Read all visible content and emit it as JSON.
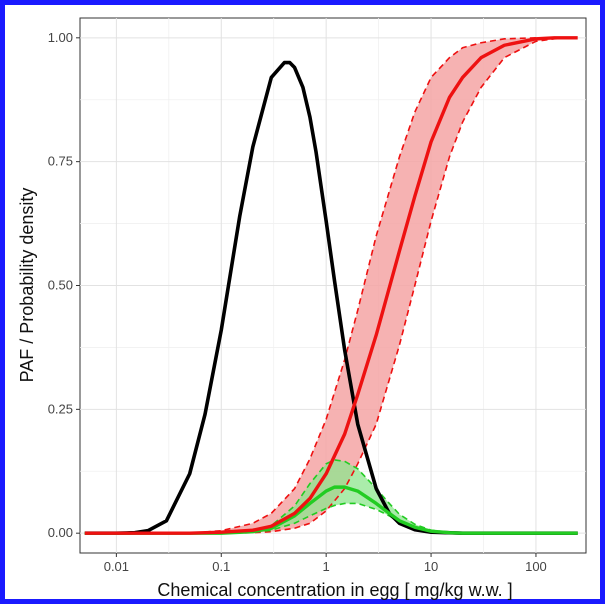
{
  "chart_data": {
    "type": "line",
    "title": "",
    "xlabel": "Chemical concentration in egg [ mg/kg w.w. ]",
    "ylabel": "PAF / Probability density",
    "xscale": "log",
    "xlim": [
      0.0045,
      300
    ],
    "ylim": [
      -0.04,
      1.04
    ],
    "x_ticks": [
      {
        "value": 0.01,
        "label": "0.01"
      },
      {
        "value": 0.1,
        "label": "0.1"
      },
      {
        "value": 1,
        "label": "1"
      },
      {
        "value": 10,
        "label": "10"
      },
      {
        "value": 100,
        "label": "100"
      }
    ],
    "y_ticks": [
      {
        "value": 0,
        "label": "0.00"
      },
      {
        "value": 0.25,
        "label": "0.25"
      },
      {
        "value": 0.5,
        "label": "0.50"
      },
      {
        "value": 0.75,
        "label": "0.75"
      },
      {
        "value": 1,
        "label": "1.00"
      }
    ],
    "grid": true,
    "legend": "none",
    "colors": {
      "black_curve": "#000000",
      "red_curve": "#ee1111",
      "red_band": "#f4a5a5",
      "green_curve": "#22cc22",
      "green_band": "#8ee68e",
      "overlap_band": "#c9a070"
    },
    "series": [
      {
        "x": [
          0.005,
          0.01,
          0.015,
          0.02,
          0.03,
          0.05,
          0.07,
          0.1,
          0.15,
          0.2,
          0.3,
          0.4,
          0.45,
          0.5,
          0.6,
          0.7,
          0.8,
          1.0,
          1.2,
          1.5,
          2,
          3,
          4,
          5,
          7,
          10,
          20,
          50,
          100,
          250
        ],
        "y": [
          0.0,
          0.0,
          0.001,
          0.005,
          0.025,
          0.12,
          0.24,
          0.41,
          0.64,
          0.78,
          0.92,
          0.95,
          0.95,
          0.94,
          0.9,
          0.84,
          0.77,
          0.63,
          0.51,
          0.37,
          0.22,
          0.09,
          0.04,
          0.02,
          0.007,
          0.002,
          0.0,
          0.0,
          0.0,
          0.0
        ]
      },
      {
        "x": [
          0.005,
          0.05,
          0.1,
          0.2,
          0.3,
          0.5,
          0.7,
          1,
          1.5,
          2,
          3,
          5,
          7,
          10,
          15,
          20,
          30,
          50,
          100,
          150,
          250
        ],
        "y": [
          0.0,
          0.0,
          0.002,
          0.006,
          0.014,
          0.04,
          0.07,
          0.12,
          0.2,
          0.28,
          0.4,
          0.57,
          0.68,
          0.79,
          0.88,
          0.92,
          0.96,
          0.985,
          0.998,
          1.0,
          1.0
        ],
        "y_lower": [
          0.0,
          0.0,
          0.0,
          0.001,
          0.003,
          0.01,
          0.02,
          0.045,
          0.09,
          0.14,
          0.22,
          0.38,
          0.5,
          0.63,
          0.76,
          0.83,
          0.9,
          0.96,
          0.993,
          0.998,
          1.0
        ],
        "y_upper": [
          0.0,
          0.0,
          0.005,
          0.02,
          0.04,
          0.09,
          0.15,
          0.23,
          0.35,
          0.45,
          0.6,
          0.76,
          0.85,
          0.92,
          0.96,
          0.98,
          0.99,
          0.998,
          1.0,
          1.0,
          1.0
        ]
      },
      {
        "x": [
          0.005,
          0.1,
          0.2,
          0.3,
          0.5,
          0.7,
          1,
          1.2,
          1.5,
          2,
          3,
          4,
          5,
          7,
          10,
          15,
          20,
          250
        ],
        "y": [
          0.0,
          0.0,
          0.003,
          0.01,
          0.035,
          0.06,
          0.085,
          0.093,
          0.093,
          0.085,
          0.06,
          0.04,
          0.025,
          0.012,
          0.004,
          0.001,
          0.0,
          0.0
        ],
        "y_lower": [
          0.0,
          0.0,
          0.002,
          0.006,
          0.02,
          0.035,
          0.05,
          0.056,
          0.06,
          0.06,
          0.048,
          0.035,
          0.022,
          0.01,
          0.003,
          0.001,
          0.0,
          0.0
        ],
        "y_upper": [
          0.0,
          0.0,
          0.005,
          0.015,
          0.055,
          0.1,
          0.14,
          0.148,
          0.145,
          0.13,
          0.09,
          0.06,
          0.038,
          0.018,
          0.006,
          0.002,
          0.0,
          0.0
        ]
      }
    ]
  }
}
